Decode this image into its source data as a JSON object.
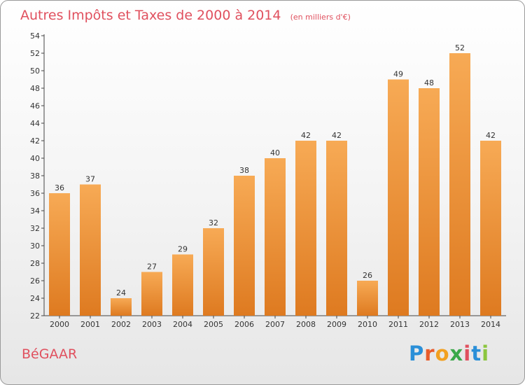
{
  "title": "Autres Impôts et Taxes de 2000 à 2014",
  "unit": "(en milliers d'€)",
  "commune": "BéGAAR",
  "logo": {
    "text": "Proxiti",
    "letters": [
      "P",
      "r",
      "o",
      "x",
      "i",
      "t",
      "i"
    ],
    "colors": [
      "#2a8fd8",
      "#e85b2a",
      "#f2a020",
      "#3aa84a",
      "#e0505e",
      "#2a8fd8",
      "#8cc63f"
    ]
  },
  "colors": {
    "bar": "#f29a45",
    "bar_light": "#f7aa55",
    "bar_dark": "#de7a20",
    "accent": "#e0505e"
  },
  "chart_data": {
    "type": "bar",
    "title": "Autres Impôts et Taxes de 2000 à 2014",
    "subtitle": "(en milliers d'€)",
    "categories": [
      "2000",
      "2001",
      "2002",
      "2003",
      "2004",
      "2005",
      "2006",
      "2007",
      "2008",
      "2009",
      "2010",
      "2011",
      "2012",
      "2013",
      "2014"
    ],
    "values": [
      36,
      37,
      24,
      27,
      29,
      32,
      38,
      40,
      42,
      42,
      26,
      49,
      48,
      52,
      42
    ],
    "ylim": [
      22,
      54
    ],
    "yticks": [
      22,
      24,
      26,
      28,
      30,
      32,
      34,
      36,
      38,
      40,
      42,
      44,
      46,
      48,
      50,
      52,
      54
    ],
    "xlabel": "",
    "ylabel": "",
    "grid": false
  }
}
